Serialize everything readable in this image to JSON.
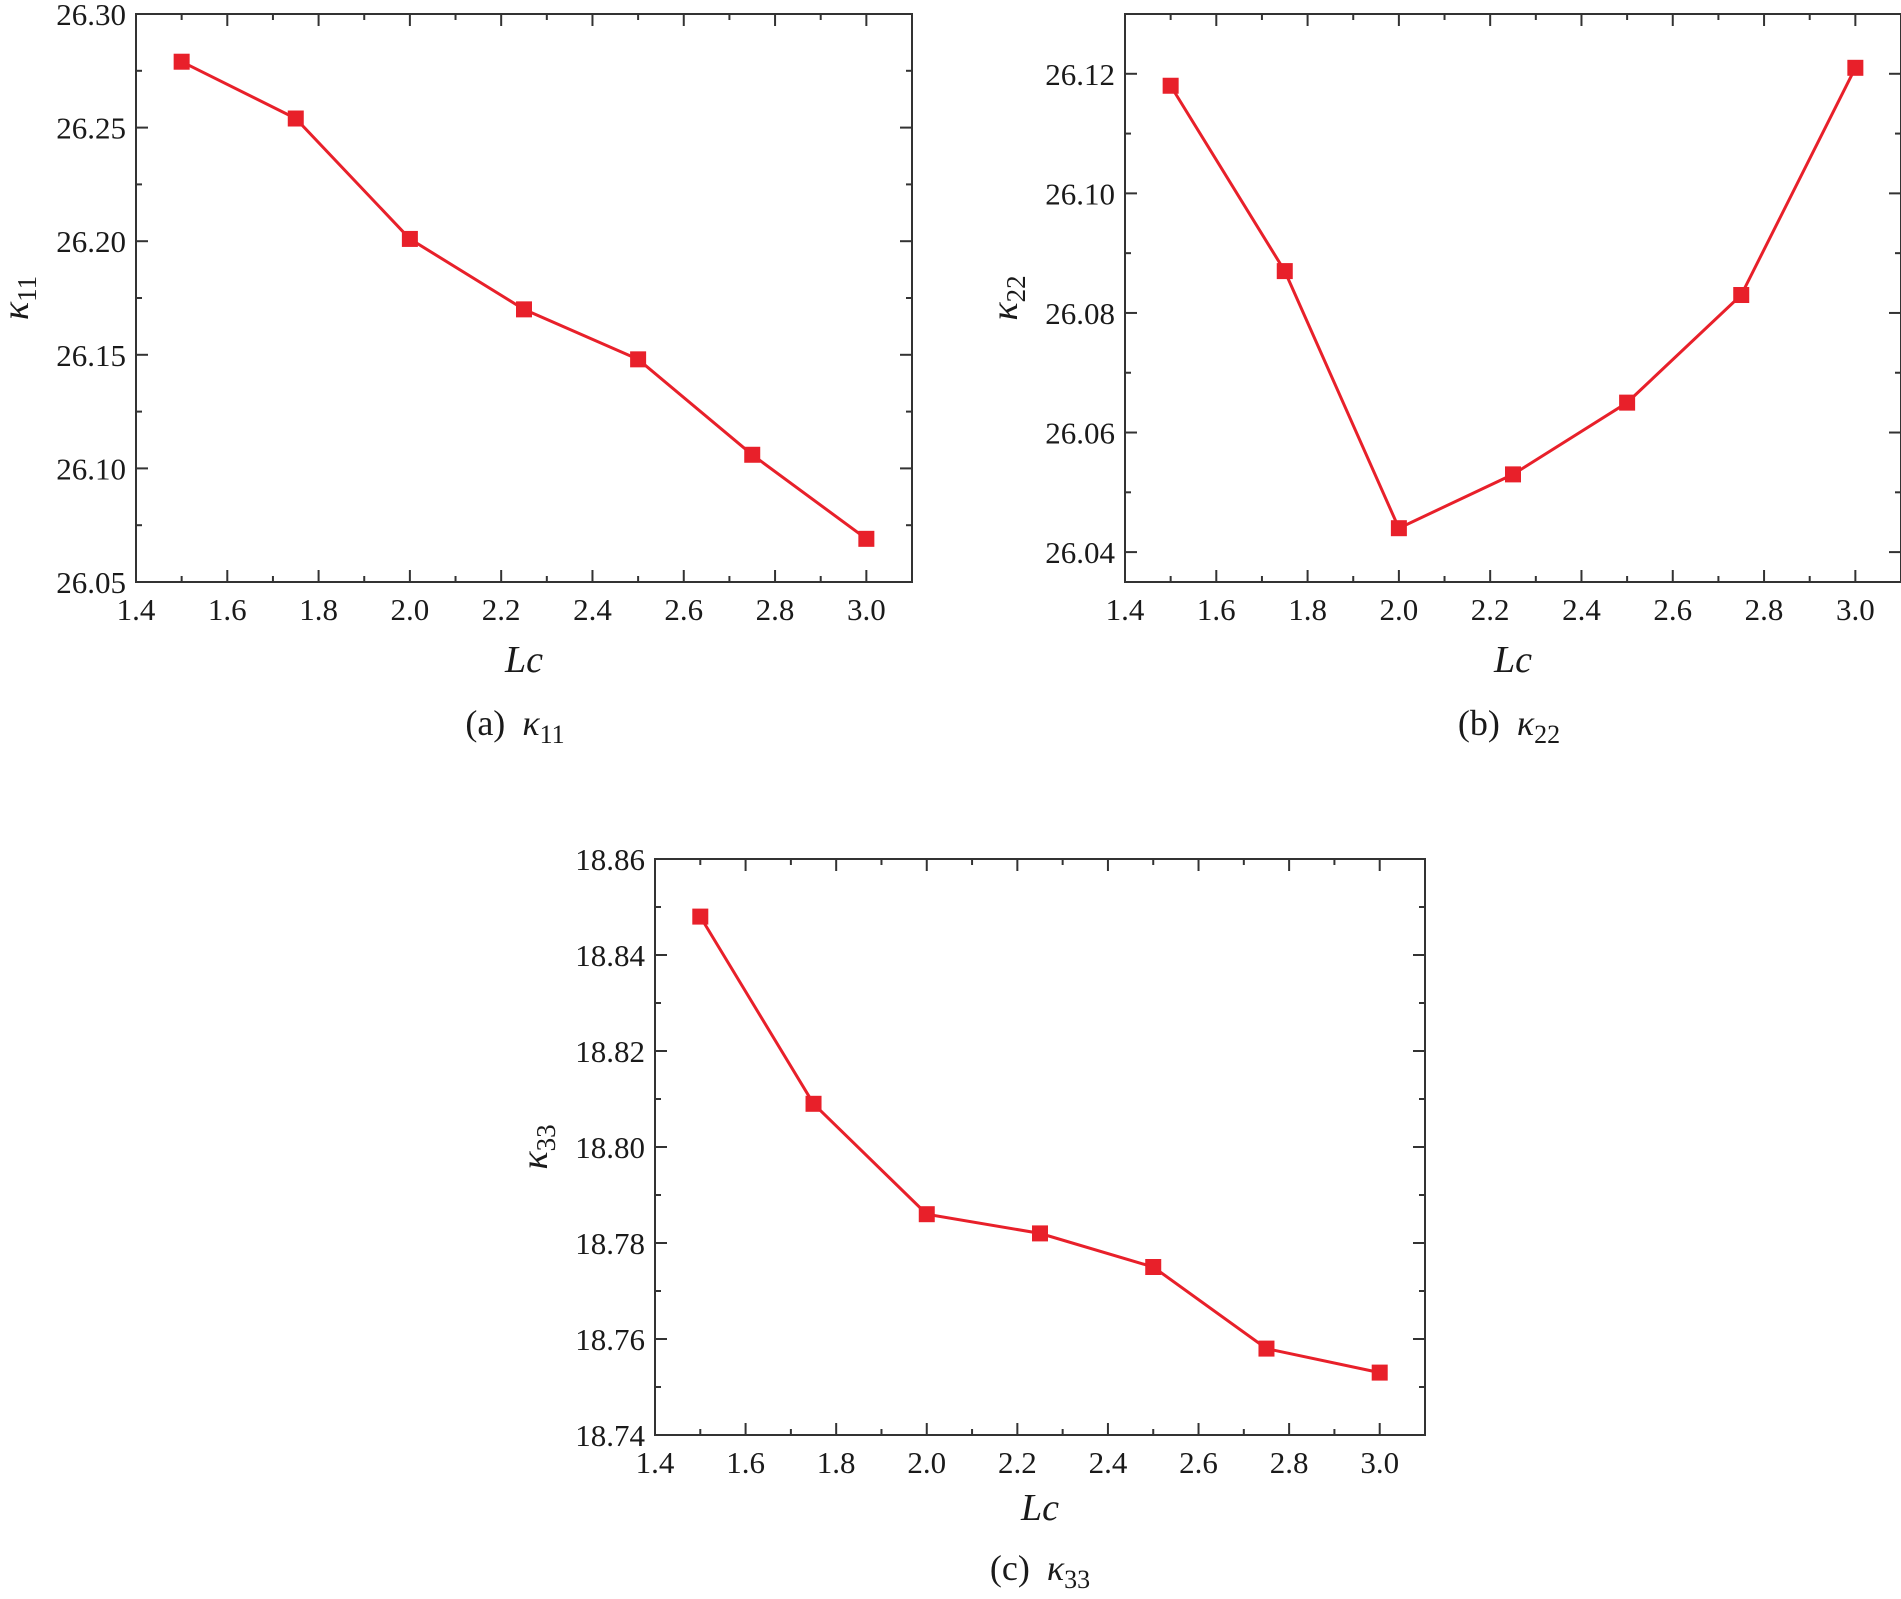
{
  "figure": {
    "marker_color": "#E8202A",
    "line_color": "#E8202A",
    "axis_color": "#333333"
  },
  "chart_data": [
    {
      "type": "line",
      "caption_prefix": "(a)",
      "caption_symbol": "κ",
      "caption_sub": "11",
      "xlabel": "Lc",
      "ylabel_symbol": "κ",
      "ylabel_sub": "11",
      "xlim": [
        1.4,
        3.1
      ],
      "ylim": [
        26.05,
        26.3
      ],
      "xticks": [
        "1.4",
        "1.6",
        "1.8",
        "2.0",
        "2.2",
        "2.4",
        "2.6",
        "2.8",
        "3.0"
      ],
      "yticks": [
        "26.05",
        "26.10",
        "26.15",
        "26.20",
        "26.25",
        "26.30"
      ],
      "x": [
        1.5,
        1.75,
        2.0,
        2.25,
        2.5,
        2.75,
        3.0
      ],
      "y": [
        26.279,
        26.254,
        26.201,
        26.17,
        26.148,
        26.106,
        26.069
      ],
      "marker": "square",
      "grid": false
    },
    {
      "type": "line",
      "caption_prefix": "(b)",
      "caption_symbol": "κ",
      "caption_sub": "22",
      "xlabel": "Lc",
      "ylabel_symbol": "κ",
      "ylabel_sub": "22",
      "xlim": [
        1.4,
        3.1
      ],
      "ylim": [
        26.035,
        26.13
      ],
      "xticks": [
        "1.4",
        "1.6",
        "1.8",
        "2.0",
        "2.2",
        "2.4",
        "2.6",
        "2.8",
        "3.0"
      ],
      "yticks": [
        "26.04",
        "26.06",
        "26.08",
        "26.10",
        "26.12"
      ],
      "x": [
        1.5,
        1.75,
        2.0,
        2.25,
        2.5,
        2.75,
        3.0
      ],
      "y": [
        26.118,
        26.087,
        26.044,
        26.053,
        26.065,
        26.083,
        26.121
      ],
      "marker": "square",
      "grid": false
    },
    {
      "type": "line",
      "caption_prefix": "(c)",
      "caption_symbol": "κ",
      "caption_sub": "33",
      "xlabel": "Lc",
      "ylabel_symbol": "κ",
      "ylabel_sub": "33",
      "xlim": [
        1.4,
        3.1
      ],
      "ylim": [
        18.74,
        18.86
      ],
      "xticks": [
        "1.4",
        "1.6",
        "1.8",
        "2.0",
        "2.2",
        "2.4",
        "2.6",
        "2.8",
        "3.0"
      ],
      "yticks": [
        "18.74",
        "18.76",
        "18.78",
        "18.80",
        "18.82",
        "18.84",
        "18.86"
      ],
      "x": [
        1.5,
        1.75,
        2.0,
        2.25,
        2.5,
        2.75,
        3.0
      ],
      "y": [
        18.848,
        18.809,
        18.786,
        18.782,
        18.775,
        18.758,
        18.753
      ],
      "marker": "square",
      "grid": false
    }
  ]
}
